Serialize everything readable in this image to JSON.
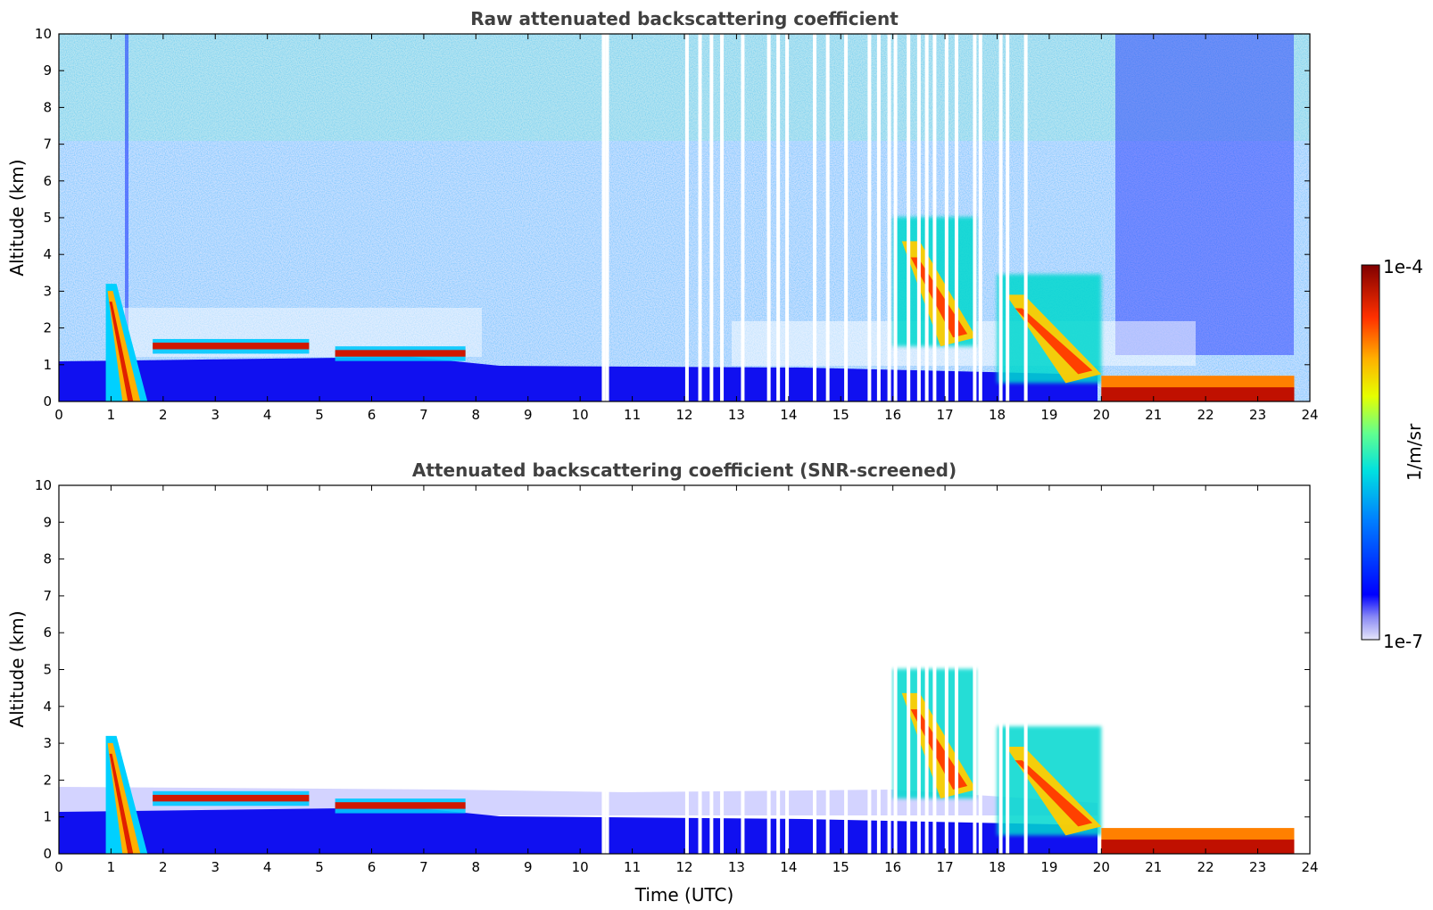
{
  "figure": {
    "panels": [
      {
        "title": "Raw attenuated backscattering coefficient",
        "ylabel": "Altitude (km)",
        "xlabel": ""
      },
      {
        "title": "Attenuated backscattering coefficient (SNR-screened)",
        "ylabel": "Altitude (km)",
        "xlabel": "Time (UTC)"
      }
    ],
    "colorbar": {
      "label": "1/m/sr",
      "max_label": "1e-4",
      "min_label": "1e-7"
    }
  },
  "chart_data": {
    "type": "heatmap",
    "panels": 2,
    "x": {
      "label": "Time (UTC)",
      "range": [
        0,
        24
      ],
      "ticks": [
        0,
        1,
        2,
        3,
        4,
        5,
        6,
        7,
        8,
        9,
        10,
        11,
        12,
        13,
        14,
        15,
        16,
        17,
        18,
        19,
        20,
        21,
        22,
        23,
        24
      ]
    },
    "y": {
      "label": "Altitude (km)",
      "range": [
        0,
        10
      ],
      "ticks": [
        0,
        1,
        2,
        3,
        4,
        5,
        6,
        7,
        8,
        9,
        10
      ]
    },
    "color_scale": {
      "label": "1/m/sr",
      "min": 1e-07,
      "max": 0.0001,
      "log": true,
      "colormap": "jet"
    },
    "data_gaps_utc": [
      10.45,
      10.52,
      12.05,
      12.3,
      12.52,
      12.72,
      13.12,
      13.62,
      13.8,
      13.97,
      14.5,
      14.75,
      15.1,
      15.55,
      15.73,
      15.93,
      16.05,
      16.3,
      16.5,
      16.65,
      16.8,
      17.03,
      17.22,
      17.57,
      17.68,
      18.07,
      18.2,
      18.55
    ],
    "features": [
      {
        "type": "aerosol plume",
        "time_range": [
          0.9,
          1.7
        ],
        "altitude_range": [
          0,
          3.2
        ]
      },
      {
        "type": "boundary layer top",
        "time_range": [
          1.8,
          4.8
        ],
        "altitude_km": 1.5
      },
      {
        "type": "boundary layer top",
        "time_range": [
          5.3,
          7.8
        ],
        "altitude_km": 1.3
      },
      {
        "type": "elevated layers",
        "time_range": [
          16.0,
          17.6
        ],
        "altitude_range": [
          1.5,
          5.9
        ]
      },
      {
        "type": "elevated layers",
        "time_range": [
          18.0,
          20.0
        ],
        "altitude_range": [
          0.5,
          4.2
        ]
      },
      {
        "type": "strong near-surface layer",
        "time_range": [
          20.0,
          23.7
        ],
        "altitude_range": [
          0,
          0.7
        ]
      }
    ]
  }
}
